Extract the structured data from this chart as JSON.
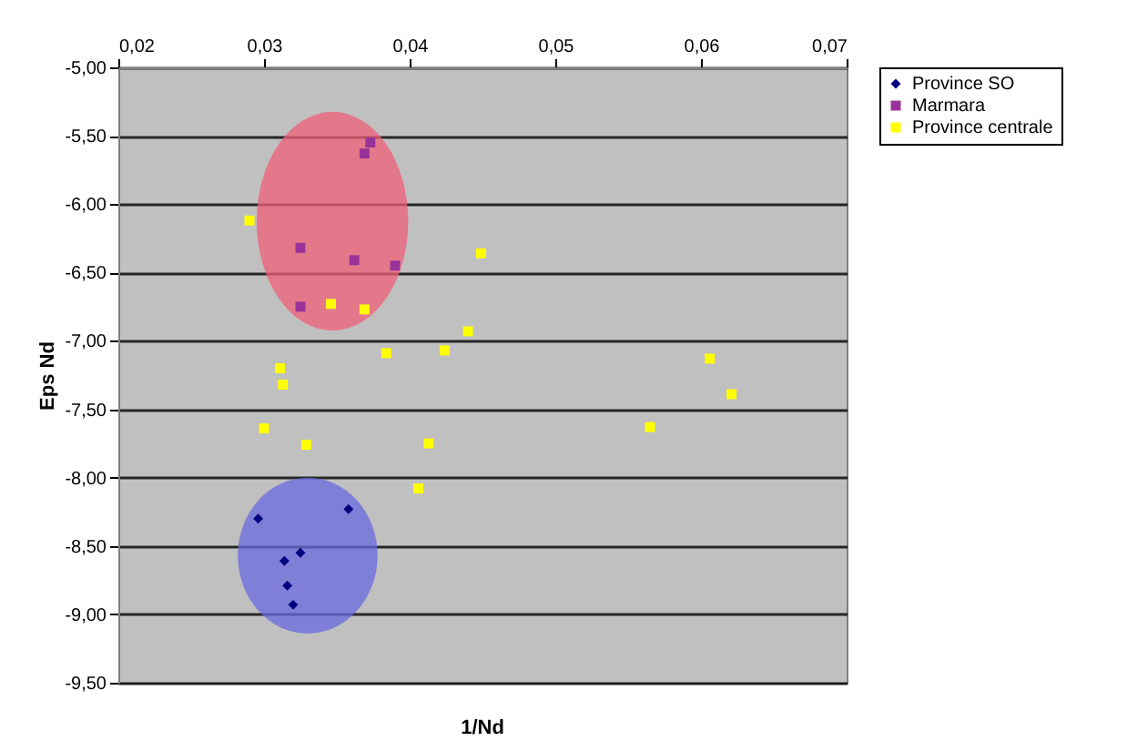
{
  "chart_data": {
    "type": "scatter",
    "xlabel": "1/Nd",
    "ylabel": "Eps Nd",
    "xlim": [
      0.02,
      0.07
    ],
    "ylim": [
      -9.5,
      -5
    ],
    "xticks": [
      {
        "value": 0.02,
        "label": "0,02"
      },
      {
        "value": 0.03,
        "label": "0,03"
      },
      {
        "value": 0.04,
        "label": "0,04"
      },
      {
        "value": 0.05,
        "label": "0,05"
      },
      {
        "value": 0.06,
        "label": "0,06"
      },
      {
        "value": 0.07,
        "label": "0,07"
      }
    ],
    "yticks": [
      {
        "value": -9.5,
        "label": "-9,50"
      },
      {
        "value": -9,
        "label": "-9,00"
      },
      {
        "value": -8.5,
        "label": "-8,50"
      },
      {
        "value": -8,
        "label": "-8,00"
      },
      {
        "value": -7.5,
        "label": "-7,50"
      },
      {
        "value": -7,
        "label": "-7,00"
      },
      {
        "value": -6.5,
        "label": "-6,50"
      },
      {
        "value": -6,
        "label": "-6,00"
      },
      {
        "value": -5.5,
        "label": "-5,50"
      },
      {
        "value": -5,
        "label": "-5,00"
      }
    ],
    "grid": "y",
    "legend": "right",
    "series": [
      {
        "name": "Province SO",
        "color": "#000080",
        "marker": "diamond",
        "x": [
          0.0296,
          0.0358,
          0.0325,
          0.0314,
          0.0316,
          0.032
        ],
        "values": [
          -8.3,
          -8.23,
          -8.55,
          -8.61,
          -8.79,
          -8.93
        ]
      },
      {
        "name": "Marmara",
        "color": "#993399",
        "marker": "square",
        "x": [
          0.0369,
          0.0373,
          0.0325,
          0.0362,
          0.0325,
          0.039
        ],
        "values": [
          -5.63,
          -5.55,
          -6.32,
          -6.41,
          -6.75,
          -6.45
        ]
      },
      {
        "name": "Province centrale",
        "color": "#ffff00",
        "marker": "square",
        "x": [
          0.029,
          0.0449,
          0.044,
          0.0424,
          0.0384,
          0.0311,
          0.0313,
          0.03,
          0.0329,
          0.0413,
          0.0406,
          0.0606,
          0.0621,
          0.0565,
          0.0346,
          0.0369
        ],
        "values": [
          -6.12,
          -6.36,
          -6.93,
          -7.07,
          -7.09,
          -7.2,
          -7.32,
          -7.64,
          -7.76,
          -7.75,
          -8.08,
          -7.13,
          -7.39,
          -7.63,
          -6.73,
          -6.77
        ]
      }
    ]
  }
}
